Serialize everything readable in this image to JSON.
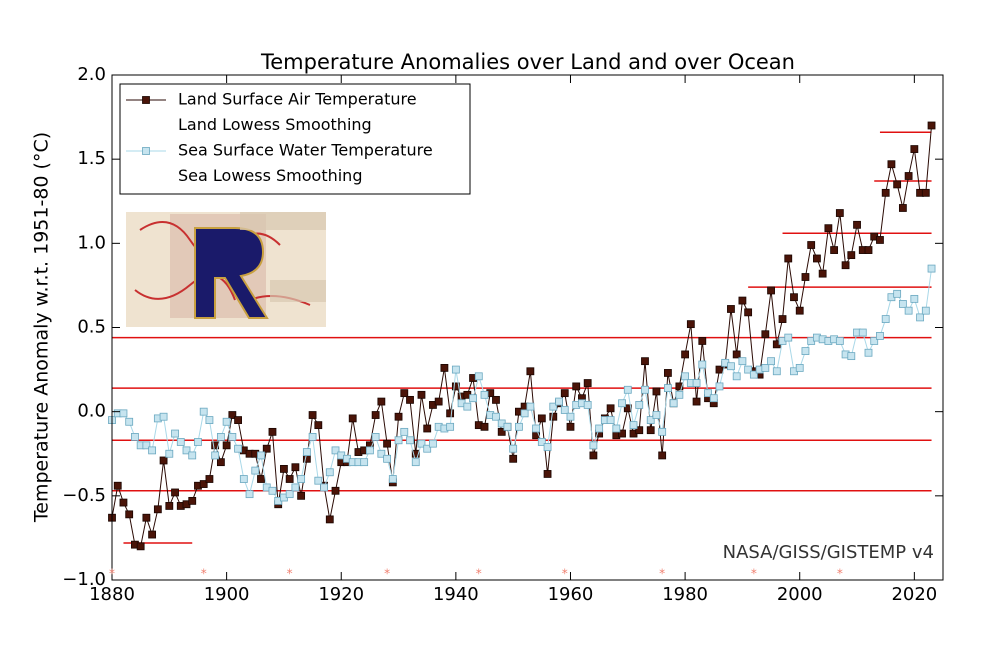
{
  "chart_data": {
    "type": "line",
    "title": "Temperature Anomalies over Land and over Ocean",
    "y_label": "Temperature Anomaly w.r.t. 1951-80 (°C)",
    "source": "NASA/GISS/GISTEMP v4",
    "x": [
      1880,
      1881,
      1882,
      1883,
      1884,
      1885,
      1886,
      1887,
      1888,
      1889,
      1890,
      1891,
      1892,
      1893,
      1894,
      1895,
      1896,
      1897,
      1898,
      1899,
      1900,
      1901,
      1902,
      1903,
      1904,
      1905,
      1906,
      1907,
      1908,
      1909,
      1910,
      1911,
      1912,
      1913,
      1914,
      1915,
      1916,
      1917,
      1918,
      1919,
      1920,
      1921,
      1922,
      1923,
      1924,
      1925,
      1926,
      1927,
      1928,
      1929,
      1930,
      1931,
      1932,
      1933,
      1934,
      1935,
      1936,
      1937,
      1938,
      1939,
      1940,
      1941,
      1942,
      1943,
      1944,
      1945,
      1946,
      1947,
      1948,
      1949,
      1950,
      1951,
      1952,
      1953,
      1954,
      1955,
      1956,
      1957,
      1958,
      1959,
      1960,
      1961,
      1962,
      1963,
      1964,
      1965,
      1966,
      1967,
      1968,
      1969,
      1970,
      1971,
      1972,
      1973,
      1974,
      1975,
      1976,
      1977,
      1978,
      1979,
      1980,
      1981,
      1982,
      1983,
      1984,
      1985,
      1986,
      1987,
      1988,
      1989,
      1990,
      1991,
      1992,
      1993,
      1994,
      1995,
      1996,
      1997,
      1998,
      1999,
      2000,
      2001,
      2002,
      2003,
      2004,
      2005,
      2006,
      2007,
      2008,
      2009,
      2010,
      2011,
      2012,
      2013,
      2014,
      2015,
      2016,
      2017,
      2018,
      2019,
      2020,
      2021,
      2022,
      2023
    ],
    "series": [
      {
        "name": "Land Surface Air Temperature",
        "color": "#4a1408",
        "line_color": "#2a0a04",
        "values": [
          -0.63,
          -0.44,
          -0.54,
          -0.61,
          -0.79,
          -0.8,
          -0.63,
          -0.73,
          -0.58,
          -0.29,
          -0.56,
          -0.48,
          -0.56,
          -0.55,
          -0.53,
          -0.44,
          -0.43,
          -0.4,
          -0.2,
          -0.3,
          -0.2,
          -0.02,
          -0.05,
          -0.23,
          -0.25,
          -0.25,
          -0.4,
          -0.22,
          -0.12,
          -0.55,
          -0.34,
          -0.4,
          -0.33,
          -0.5,
          -0.28,
          -0.02,
          -0.08,
          -0.44,
          -0.64,
          -0.47,
          -0.3,
          -0.3,
          -0.04,
          -0.24,
          -0.23,
          -0.2,
          -0.02,
          0.06,
          -0.19,
          -0.42,
          -0.03,
          0.11,
          0.07,
          -0.25,
          0.1,
          -0.1,
          0.04,
          0.06,
          0.26,
          -0.01,
          0.15,
          0.09,
          0.1,
          0.2,
          -0.08,
          -0.09,
          0.11,
          0.07,
          -0.12,
          -0.09,
          -0.28,
          0.0,
          0.03,
          0.24,
          -0.14,
          -0.04,
          -0.37,
          -0.03,
          0.05,
          0.11,
          -0.09,
          0.15,
          0.08,
          0.17,
          -0.26,
          -0.13,
          -0.04,
          0.02,
          -0.14,
          -0.13,
          0.02,
          -0.13,
          -0.11,
          0.3,
          -0.11,
          0.12,
          -0.26,
          0.23,
          0.05,
          0.15,
          0.34,
          0.52,
          0.06,
          0.42,
          0.08,
          0.05,
          0.25,
          0.28,
          0.61,
          0.34,
          0.66,
          0.59,
          0.24,
          0.22,
          0.46,
          0.72,
          0.4,
          0.55,
          0.91,
          0.68,
          0.6,
          0.8,
          0.99,
          0.91,
          0.82,
          1.09,
          0.96,
          1.18,
          0.87,
          0.93,
          1.11,
          0.96,
          0.96,
          1.04,
          1.02,
          1.3,
          1.47,
          1.35,
          1.21,
          1.4,
          1.56,
          1.3,
          1.3,
          1.7
        ]
      },
      {
        "name": "Sea Surface Water Temperature",
        "color": "#c6e4ef",
        "line_color": "#a9d8e8",
        "values": [
          -0.05,
          -0.01,
          -0.01,
          -0.06,
          -0.15,
          -0.2,
          -0.2,
          -0.23,
          -0.04,
          -0.03,
          -0.25,
          -0.13,
          -0.18,
          -0.23,
          -0.26,
          -0.18,
          0.0,
          -0.05,
          -0.26,
          -0.15,
          -0.06,
          -0.15,
          -0.22,
          -0.4,
          -0.49,
          -0.35,
          -0.26,
          -0.45,
          -0.47,
          -0.53,
          -0.51,
          -0.49,
          -0.45,
          -0.4,
          -0.24,
          -0.15,
          -0.41,
          -0.45,
          -0.36,
          -0.23,
          -0.26,
          -0.28,
          -0.3,
          -0.3,
          -0.3,
          -0.23,
          -0.15,
          -0.25,
          -0.28,
          -0.4,
          -0.17,
          -0.12,
          -0.17,
          -0.3,
          -0.19,
          -0.22,
          -0.19,
          -0.09,
          -0.1,
          -0.09,
          0.25,
          0.05,
          0.03,
          0.08,
          0.21,
          0.1,
          -0.02,
          -0.03,
          -0.07,
          -0.09,
          -0.22,
          -0.09,
          -0.01,
          0.03,
          -0.1,
          -0.18,
          -0.21,
          0.03,
          0.06,
          0.01,
          -0.03,
          0.04,
          0.05,
          0.04,
          -0.2,
          -0.1,
          -0.05,
          -0.05,
          -0.1,
          0.05,
          0.13,
          -0.08,
          0.04,
          0.13,
          -0.05,
          -0.02,
          -0.12,
          0.14,
          0.05,
          0.1,
          0.21,
          0.17,
          0.17,
          0.28,
          0.11,
          0.08,
          0.15,
          0.29,
          0.27,
          0.21,
          0.3,
          0.25,
          0.22,
          0.25,
          0.26,
          0.3,
          0.24,
          0.42,
          0.44,
          0.24,
          0.26,
          0.36,
          0.42,
          0.44,
          0.43,
          0.42,
          0.43,
          0.42,
          0.34,
          0.33,
          0.47,
          0.47,
          0.35,
          0.42,
          0.45,
          0.55,
          0.68,
          0.7,
          0.64,
          0.6,
          0.67,
          0.56,
          0.6,
          0.85
        ]
      }
    ],
    "lowess_names": [
      "Land Lowess Smoothing",
      "Sea Lowess Smoothing"
    ],
    "xlim": [
      1880,
      2025
    ],
    "ylim": [
      -1,
      2
    ],
    "xticks": [
      1880,
      1900,
      1920,
      1940,
      1960,
      1980,
      2000,
      2020
    ],
    "yticks": [
      {
        "value": 2,
        "label": "2.0"
      },
      1.5,
      {
        "value": 1,
        "label": "1.0"
      },
      0.5,
      {
        "value": 0,
        "label": "0.0"
      },
      {
        "value": -0.5,
        "label": "−0.5"
      },
      {
        "value": -1,
        "label": "−1.0"
      }
    ],
    "hlines": {
      "color": "#e01010",
      "lines": [
        {
          "y": 0.44,
          "x": [
            1880,
            2023
          ]
        },
        {
          "y": 0.14,
          "x": [
            1880,
            2023
          ]
        },
        {
          "y": -0.17,
          "x": [
            1880,
            2023
          ]
        },
        {
          "y": -0.47,
          "x": [
            1880,
            2023
          ]
        },
        {
          "y": -0.78,
          "x": [
            1882,
            1894
          ]
        },
        {
          "y": 0.74,
          "x": [
            1991,
            2023
          ]
        },
        {
          "y": 1.06,
          "x": [
            1997,
            2023
          ]
        },
        {
          "y": 1.37,
          "x": [
            2013,
            2023
          ]
        },
        {
          "y": 1.66,
          "x": [
            2014,
            2023
          ]
        }
      ]
    },
    "footnote_marks": {
      "label": "*",
      "color": "#f08070",
      "x": [
        1880,
        1896,
        1911,
        1928,
        1944,
        1959,
        1976,
        1992,
        2007
      ]
    },
    "legend": "upper left"
  }
}
